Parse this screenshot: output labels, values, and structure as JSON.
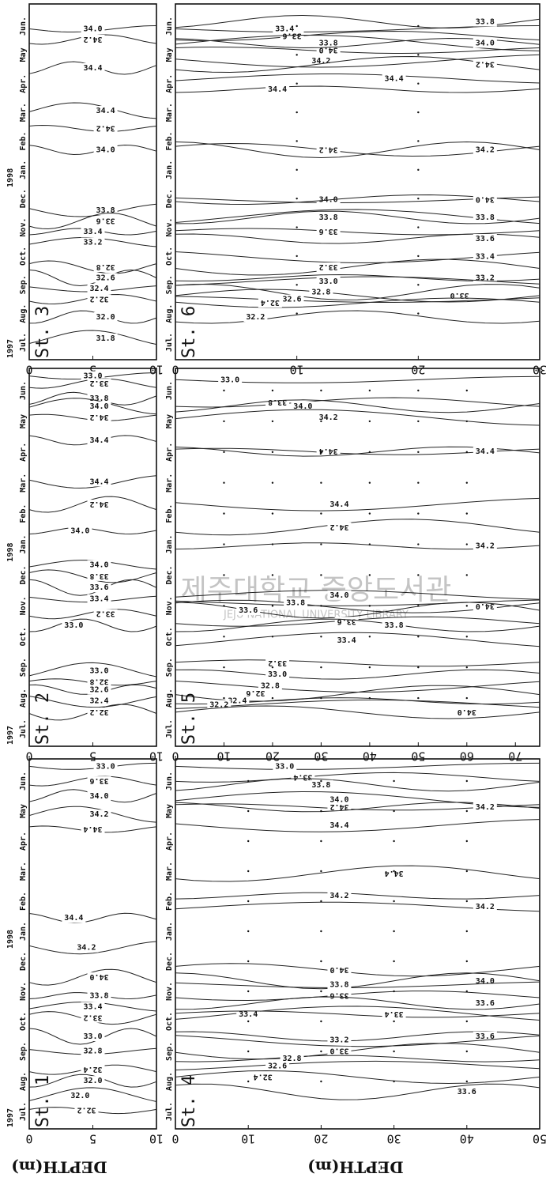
{
  "axis_label": "DEPTH(m)",
  "watermark": {
    "korean": "제주대학교 중앙도서관",
    "english": "JEJU NATIONAL UNIVERSITY LIBRARY"
  },
  "year_labels": [
    "1997",
    "1998"
  ],
  "months": [
    "Jul.",
    "Aug.",
    "Sep.",
    "Oct.",
    "Nov.",
    "Dec.",
    "Jan.",
    "Feb.",
    "Mar.",
    "Apr.",
    "May",
    "Jun."
  ],
  "panels": [
    {
      "station": "St. 3",
      "depth_lim": [
        0,
        10
      ],
      "depth_ticks": [
        0,
        5,
        10
      ],
      "contour_labels": [
        "34.0",
        "34.2",
        "34.4",
        "34.4",
        "34.2",
        "34.0",
        "33.8",
        "33.6",
        "33.4",
        "33.2",
        "32.8",
        "32.6",
        "32.4",
        "32.2",
        "32.0",
        "31.8"
      ]
    },
    {
      "station": "St. 6",
      "depth_lim": [
        0,
        30
      ],
      "depth_ticks": [
        0,
        10,
        20,
        30
      ],
      "contour_labels": [
        "33.4",
        "33.6",
        "33.8",
        "33.8",
        "34.0",
        "34.0",
        "34.2",
        "34.2",
        "34.4",
        "34.4",
        "34.2",
        "34.2",
        "34.0",
        "34.0",
        "33.8",
        "33.8",
        "33.6",
        "33.6",
        "33.4",
        "33.2",
        "33.2",
        "33.0",
        "33.0",
        "32.8",
        "32.6",
        "32.4",
        "32.2"
      ]
    },
    {
      "station": "St. 2",
      "depth_lim": [
        0,
        10
      ],
      "depth_ticks": [
        0,
        5,
        10
      ],
      "contour_labels": [
        "33.0",
        "33.2",
        "33.8",
        "34.0",
        "34.2",
        "34.4",
        "34.4",
        "34.2",
        "34.0",
        "34.0",
        "33.8",
        "33.6",
        "33.4",
        "33.2",
        "33.0",
        "33.0",
        "32.8",
        "32.6",
        "32.4",
        "32.2"
      ]
    },
    {
      "station": "St. 5",
      "depth_lim": [
        0,
        75
      ],
      "depth_ticks": [
        0,
        10,
        20,
        30,
        40,
        50,
        60,
        70
      ],
      "contour_labels": [
        "33.0",
        "33.8",
        "34.0",
        "34.2",
        "34.4",
        "34.4",
        "34.4",
        "34.2",
        "34.2",
        "34.0",
        "34.0",
        "33.6",
        "33.8",
        "33.6",
        "33.8",
        "33.4",
        "33.2",
        "33.0",
        "32.8",
        "32.6",
        "32.4",
        "32.2",
        "34.0"
      ]
    },
    {
      "station": "St. 1",
      "depth_lim": [
        0,
        10
      ],
      "depth_ticks": [
        0,
        5,
        10
      ],
      "contour_labels": [
        "33.0",
        "33.6",
        "34.0",
        "34.2",
        "34.4",
        "34.4",
        "34.2",
        "34.0",
        "33.8",
        "33.4",
        "33.2",
        "33.0",
        "32.8",
        "32.4",
        "32.0",
        "32.0",
        "32.2"
      ]
    },
    {
      "station": "St. 4",
      "depth_lim": [
        0,
        50
      ],
      "depth_ticks": [
        0,
        10,
        20,
        30,
        40,
        50
      ],
      "contour_labels": [
        "33.0",
        "33.4",
        "33.8",
        "34.0",
        "34.2",
        "34.2",
        "34.4",
        "34.4",
        "34.2",
        "34.2",
        "34.0",
        "34.0",
        "33.8",
        "33.6",
        "33.6",
        "33.4",
        "33.4",
        "33.6",
        "33.2",
        "33.0",
        "32.8",
        "32.6",
        "32.4",
        "33.6"
      ]
    }
  ]
}
